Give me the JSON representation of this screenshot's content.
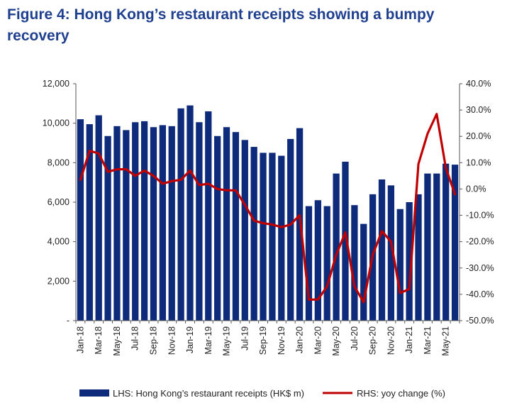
{
  "title": "Figure 4: Hong Kong’s restaurant receipts showing a bumpy recovery",
  "chart_data": {
    "type": "bar",
    "categories": [
      "Jan-18",
      "Feb-18",
      "Mar-18",
      "Apr-18",
      "May-18",
      "Jun-18",
      "Jul-18",
      "Aug-18",
      "Sep-18",
      "Oct-18",
      "Nov-18",
      "Dec-18",
      "Jan-19",
      "Feb-19",
      "Mar-19",
      "Apr-19",
      "May-19",
      "Jun-19",
      "Jul-19",
      "Aug-19",
      "Sep-19",
      "Oct-19",
      "Nov-19",
      "Dec-19",
      "Jan-20",
      "Feb-20",
      "Mar-20",
      "Apr-20",
      "May-20",
      "Jun-20",
      "Jul-20",
      "Aug-20",
      "Sep-20",
      "Oct-20",
      "Nov-20",
      "Dec-20",
      "Jan-21",
      "Feb-21",
      "Mar-21",
      "Apr-21",
      "May-21",
      "Jun-21"
    ],
    "xtick_labels": [
      "Jan-18",
      "Mar-18",
      "May-18",
      "Jul-18",
      "Sep-18",
      "Nov-18",
      "Jan-19",
      "Mar-19",
      "May-19",
      "Jul-19",
      "Sep-19",
      "Nov-19",
      "Jan-20",
      "Mar-20",
      "May-20",
      "Jul-20",
      "Sep-20",
      "Nov-20",
      "Jan-21",
      "Mar-21",
      "May-21"
    ],
    "series": [
      {
        "name": "LHS: Hong Kong’s restaurant receipts (HK$ m)",
        "type": "bar",
        "axis": "left",
        "color": "#0e2a7a",
        "values": [
          10200,
          9950,
          10400,
          9350,
          9850,
          9650,
          10050,
          10100,
          9800,
          9900,
          9850,
          10750,
          10900,
          10050,
          10600,
          9350,
          9800,
          9550,
          9150,
          8800,
          8500,
          8500,
          8350,
          9200,
          9750,
          5800,
          6100,
          5800,
          7450,
          8050,
          5850,
          4900,
          6400,
          7150,
          6850,
          5650,
          6000,
          6400,
          7450,
          7450,
          7950,
          7900
        ]
      },
      {
        "name": "RHS: yoy change (%)",
        "type": "line",
        "axis": "right",
        "color": "#c00000",
        "values": [
          3.5,
          14.5,
          13.5,
          6.5,
          7.5,
          7.5,
          5,
          7,
          5,
          2,
          3,
          3.5,
          7,
          1.5,
          2,
          0,
          -0.5,
          -0.5,
          -6,
          -12,
          -13,
          -13.5,
          -14.5,
          -13.5,
          -10,
          -42,
          -42,
          -37,
          -25,
          -16.5,
          -37,
          -43,
          -25,
          -16,
          -20,
          -39.5,
          -38,
          9.5,
          21,
          28.5,
          8,
          -2
        ]
      }
    ],
    "y_left": {
      "min": 0,
      "max": 12000,
      "step": 2000,
      "tick_labels": [
        "-",
        "2,000",
        "4,000",
        "6,000",
        "8,000",
        "10,000",
        "12,000"
      ]
    },
    "y_right": {
      "min": -50,
      "max": 40,
      "step": 10,
      "tick_labels": [
        "-50.0%",
        "-40.0%",
        "-30.0%",
        "-20.0%",
        "-10.0%",
        "0.0%",
        "10.0%",
        "20.0%",
        "30.0%",
        "40.0%"
      ]
    },
    "grid": false,
    "legend_position": "bottom",
    "legend": {
      "bar_label": "LHS: Hong Kong’s restaurant receipts (HK$ m)",
      "line_label": "RHS: yoy change (%)"
    }
  }
}
